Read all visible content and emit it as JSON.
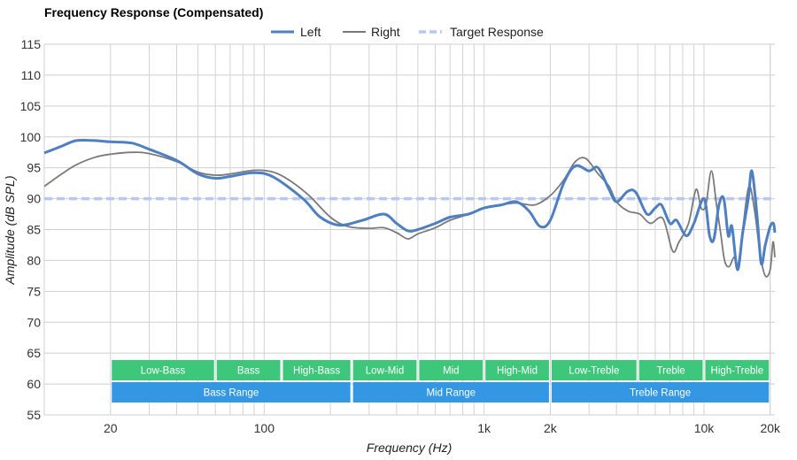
{
  "chart_data": {
    "type": "line",
    "title": "Frequency Response (Compensated)",
    "xlabel": "Frequency (Hz)",
    "ylabel": "Amplitude (dB SPL)",
    "x_scale": "log",
    "xlim": [
      10,
      21000
    ],
    "ylim": [
      55,
      115
    ],
    "y_ticks": [
      55,
      60,
      65,
      70,
      75,
      80,
      85,
      90,
      95,
      100,
      105,
      110,
      115
    ],
    "x_tick_labels": [
      {
        "value": 20,
        "label": "20"
      },
      {
        "value": 100,
        "label": "100"
      },
      {
        "value": 1000,
        "label": "1k"
      },
      {
        "value": 2000,
        "label": "2k"
      },
      {
        "value": 10000,
        "label": "10k"
      },
      {
        "value": 20000,
        "label": "20k"
      }
    ],
    "grid": true,
    "legend_position": "top-center",
    "series": [
      {
        "name": "Left",
        "color": "#4e7fc1",
        "style": "solid",
        "points": [
          [
            10,
            97.4
          ],
          [
            12,
            98.5
          ],
          [
            14,
            99.4
          ],
          [
            17,
            99.4
          ],
          [
            20,
            99.2
          ],
          [
            25,
            99.0
          ],
          [
            30,
            98.0
          ],
          [
            40,
            96.2
          ],
          [
            50,
            94.0
          ],
          [
            60,
            93.3
          ],
          [
            70,
            93.6
          ],
          [
            90,
            94.2
          ],
          [
            110,
            93.5
          ],
          [
            150,
            90.0
          ],
          [
            180,
            87.0
          ],
          [
            220,
            85.7
          ],
          [
            280,
            86.5
          ],
          [
            350,
            87.5
          ],
          [
            400,
            86.0
          ],
          [
            450,
            84.8
          ],
          [
            500,
            85.0
          ],
          [
            600,
            86.0
          ],
          [
            700,
            87.0
          ],
          [
            850,
            87.5
          ],
          [
            1000,
            88.5
          ],
          [
            1200,
            89.0
          ],
          [
            1400,
            89.5
          ],
          [
            1600,
            88.0
          ],
          [
            1800,
            85.5
          ],
          [
            2000,
            86.5
          ],
          [
            2300,
            92.5
          ],
          [
            2600,
            95.3
          ],
          [
            3000,
            94.5
          ],
          [
            3300,
            95.0
          ],
          [
            3700,
            91.5
          ],
          [
            4000,
            89.5
          ],
          [
            4500,
            91.2
          ],
          [
            4900,
            91.0
          ],
          [
            5500,
            87.5
          ],
          [
            6000,
            88.5
          ],
          [
            6400,
            89.0
          ],
          [
            7000,
            86.0
          ],
          [
            7500,
            86.5
          ],
          [
            8300,
            84.0
          ],
          [
            9000,
            86.0
          ],
          [
            10000,
            90.0
          ],
          [
            10600,
            84.0
          ],
          [
            11100,
            83.5
          ],
          [
            11700,
            89.0
          ],
          [
            12300,
            90.0
          ],
          [
            12900,
            84.0
          ],
          [
            13400,
            85.5
          ],
          [
            14200,
            78.5
          ],
          [
            15000,
            84.5
          ],
          [
            15900,
            90.0
          ],
          [
            16500,
            94.5
          ],
          [
            17400,
            87.5
          ],
          [
            18200,
            79.5
          ],
          [
            19000,
            82.5
          ],
          [
            20000,
            85.5
          ],
          [
            20700,
            86.0
          ],
          [
            21000,
            84.5
          ]
        ]
      },
      {
        "name": "Right",
        "color": "#7a7a7a",
        "style": "solid",
        "points": [
          [
            10,
            92.0
          ],
          [
            12,
            94.0
          ],
          [
            14,
            95.5
          ],
          [
            17,
            96.7
          ],
          [
            20,
            97.2
          ],
          [
            25,
            97.5
          ],
          [
            30,
            97.3
          ],
          [
            40,
            96.0
          ],
          [
            50,
            94.3
          ],
          [
            60,
            93.8
          ],
          [
            70,
            94.0
          ],
          [
            90,
            94.6
          ],
          [
            110,
            94.3
          ],
          [
            130,
            93.0
          ],
          [
            160,
            90.5
          ],
          [
            200,
            87.0
          ],
          [
            240,
            85.5
          ],
          [
            300,
            85.2
          ],
          [
            350,
            85.3
          ],
          [
            400,
            84.5
          ],
          [
            450,
            83.5
          ],
          [
            500,
            84.3
          ],
          [
            600,
            85.3
          ],
          [
            700,
            86.5
          ],
          [
            850,
            87.5
          ],
          [
            1000,
            88.5
          ],
          [
            1200,
            89.0
          ],
          [
            1400,
            89.3
          ],
          [
            1700,
            89.0
          ],
          [
            2000,
            90.5
          ],
          [
            2300,
            93.0
          ],
          [
            2600,
            96.0
          ],
          [
            2900,
            96.5
          ],
          [
            3300,
            94.0
          ],
          [
            3700,
            92.0
          ],
          [
            4000,
            89.5
          ],
          [
            4500,
            88.0
          ],
          [
            5100,
            87.5
          ],
          [
            5700,
            86.0
          ],
          [
            6500,
            86.8
          ],
          [
            7200,
            81.5
          ],
          [
            7700,
            83.0
          ],
          [
            8500,
            86.0
          ],
          [
            9200,
            91.5
          ],
          [
            9700,
            88.5
          ],
          [
            10200,
            89.0
          ],
          [
            10800,
            94.5
          ],
          [
            11400,
            89.0
          ],
          [
            11900,
            84.5
          ],
          [
            12400,
            80.0
          ],
          [
            13000,
            79.0
          ],
          [
            13700,
            80.5
          ],
          [
            14300,
            79.5
          ],
          [
            15000,
            85.0
          ],
          [
            16000,
            92.0
          ],
          [
            17000,
            88.0
          ],
          [
            18000,
            81.0
          ],
          [
            19000,
            77.5
          ],
          [
            20000,
            78.5
          ],
          [
            20600,
            83.0
          ],
          [
            21000,
            80.5
          ]
        ]
      },
      {
        "name": "Target Response",
        "color": "#b7c8f7",
        "style": "dashed",
        "points": [
          [
            10,
            90
          ],
          [
            21000,
            90
          ]
        ]
      }
    ],
    "ranges": [
      {
        "row": 1,
        "label": "Low-Bass",
        "from": 20,
        "to": 60,
        "color": "#3ec77a"
      },
      {
        "row": 1,
        "label": "Bass",
        "from": 60,
        "to": 120,
        "color": "#3ec77a"
      },
      {
        "row": 1,
        "label": "High-Bass",
        "from": 120,
        "to": 250,
        "color": "#3ec77a"
      },
      {
        "row": 1,
        "label": "Low-Mid",
        "from": 250,
        "to": 500,
        "color": "#3ec77a"
      },
      {
        "row": 1,
        "label": "Mid",
        "from": 500,
        "to": 1000,
        "color": "#3ec77a"
      },
      {
        "row": 1,
        "label": "High-Mid",
        "from": 1000,
        "to": 2000,
        "color": "#3ec77a"
      },
      {
        "row": 1,
        "label": "Low-Treble",
        "from": 2000,
        "to": 5000,
        "color": "#3ec77a"
      },
      {
        "row": 1,
        "label": "Treble",
        "from": 5000,
        "to": 10000,
        "color": "#3ec77a"
      },
      {
        "row": 1,
        "label": "High-Treble",
        "from": 10000,
        "to": 20000,
        "color": "#3ec77a"
      },
      {
        "row": 2,
        "label": "Bass Range",
        "from": 20,
        "to": 250,
        "color": "#3497e3"
      },
      {
        "row": 2,
        "label": "Mid Range",
        "from": 250,
        "to": 2000,
        "color": "#3497e3"
      },
      {
        "row": 2,
        "label": "Treble Range",
        "from": 2000,
        "to": 20000,
        "color": "#3497e3"
      }
    ]
  }
}
